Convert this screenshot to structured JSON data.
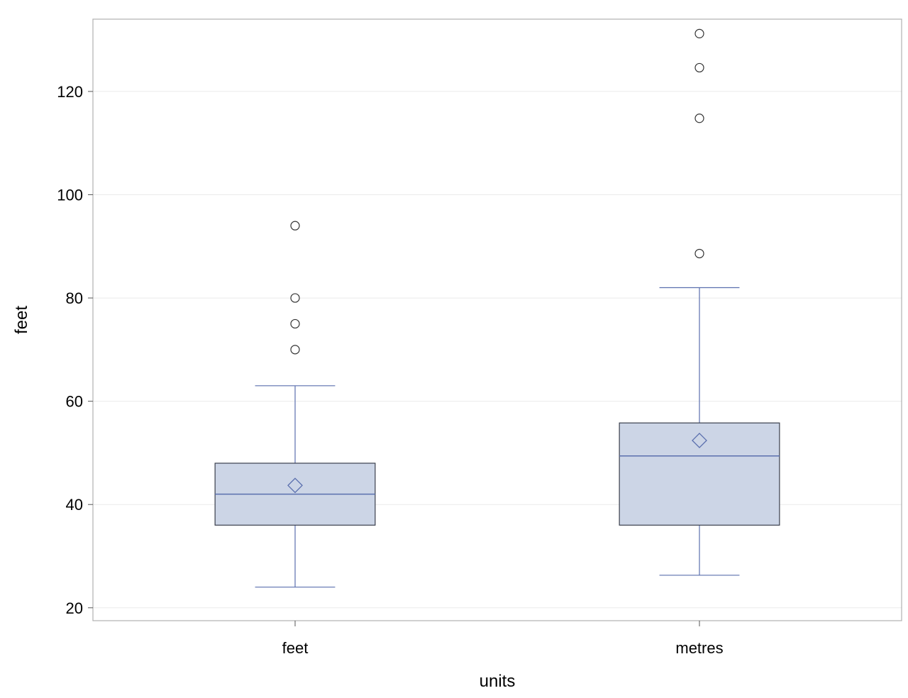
{
  "chart_data": {
    "type": "boxplot",
    "xlabel": "units",
    "ylabel": "feet",
    "ylim": [
      17.5,
      134
    ],
    "y_ticks": [
      20,
      40,
      60,
      80,
      100,
      120
    ],
    "grid": "horizontal",
    "categories": [
      "feet",
      "metres"
    ],
    "boxes": [
      {
        "category": "feet",
        "whisker_low": 24,
        "q1": 36,
        "median": 42,
        "q3": 48,
        "whisker_high": 63,
        "mean": 43.7,
        "outliers": [
          70,
          75,
          80,
          94
        ]
      },
      {
        "category": "metres",
        "whisker_low": 26.3,
        "q1": 36,
        "median": 49.4,
        "q3": 55.8,
        "whisker_high": 82,
        "mean": 52.4,
        "outliers": [
          88.6,
          114.8,
          124.6,
          131.2
        ]
      }
    ],
    "colors": {
      "box_fill": "#ccd5e6",
      "box_edge": "#3a3f4d",
      "line": "#5a6fae",
      "grid": "#ebebeb",
      "frame": "#b0b0b0",
      "outlier": "#333333"
    }
  }
}
